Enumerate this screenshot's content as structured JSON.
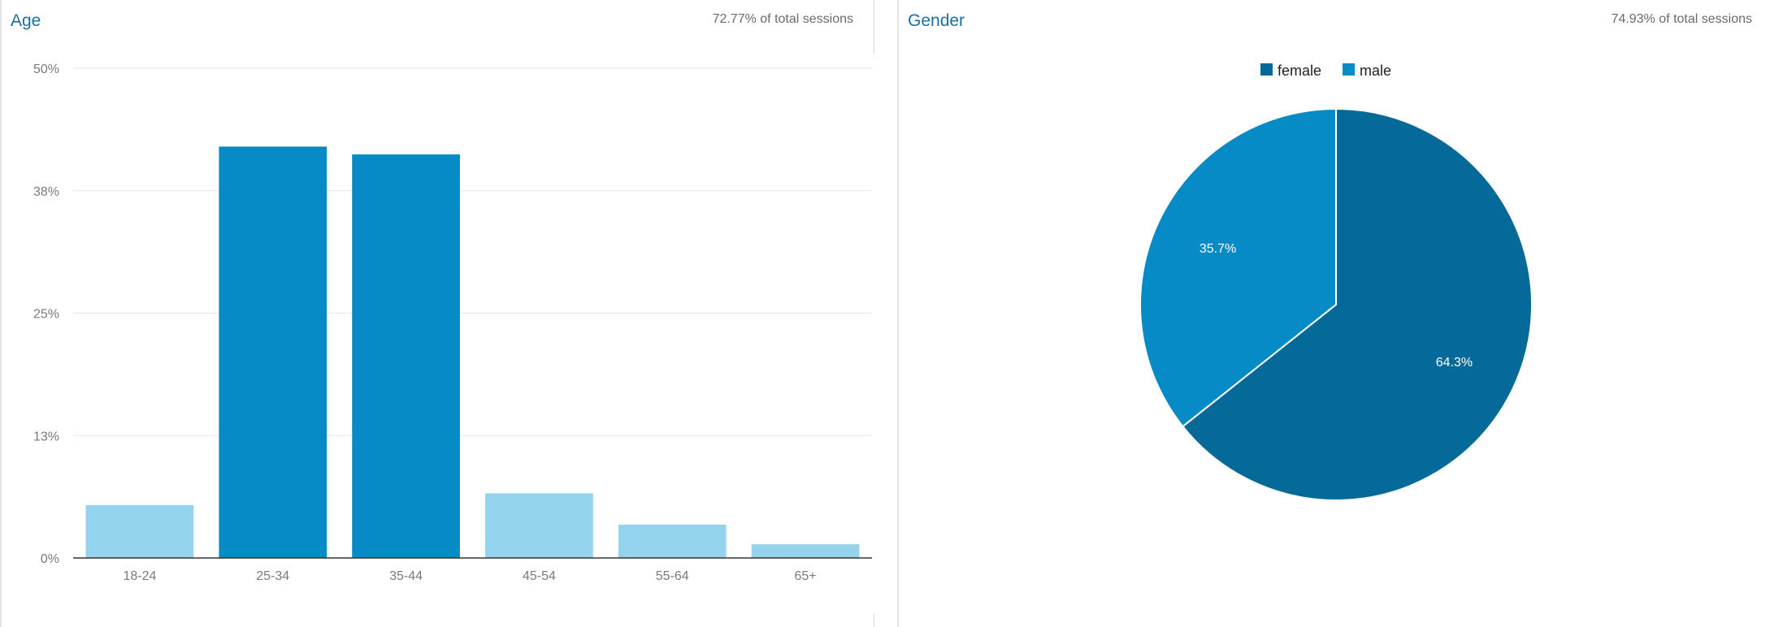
{
  "panels": {
    "age": {
      "title": "Age",
      "subtitle": "72.77% of total sessions"
    },
    "gender": {
      "title": "Gender",
      "subtitle": "74.93% of total sessions"
    }
  },
  "chart_data": [
    {
      "type": "bar",
      "title": "Age",
      "categories": [
        "18-24",
        "25-34",
        "35-44",
        "45-54",
        "55-64",
        "65+"
      ],
      "values": [
        5.4,
        42.0,
        41.2,
        6.6,
        3.4,
        1.4
      ],
      "yticks": [
        "0%",
        "13%",
        "25%",
        "38%",
        "50%"
      ],
      "ylim": [
        0,
        50
      ],
      "grid": true,
      "colors": {
        "highlight": "#068bc6",
        "normal": "#94d3ed"
      },
      "highlight_indices": [
        1,
        2
      ]
    },
    {
      "type": "pie",
      "title": "Gender",
      "labels": [
        "female",
        "male"
      ],
      "values": [
        64.3,
        35.7
      ],
      "value_labels": [
        "64.3%",
        "35.7%"
      ],
      "colors": [
        "#056a97",
        "#068bc6"
      ],
      "legend": "top"
    }
  ]
}
